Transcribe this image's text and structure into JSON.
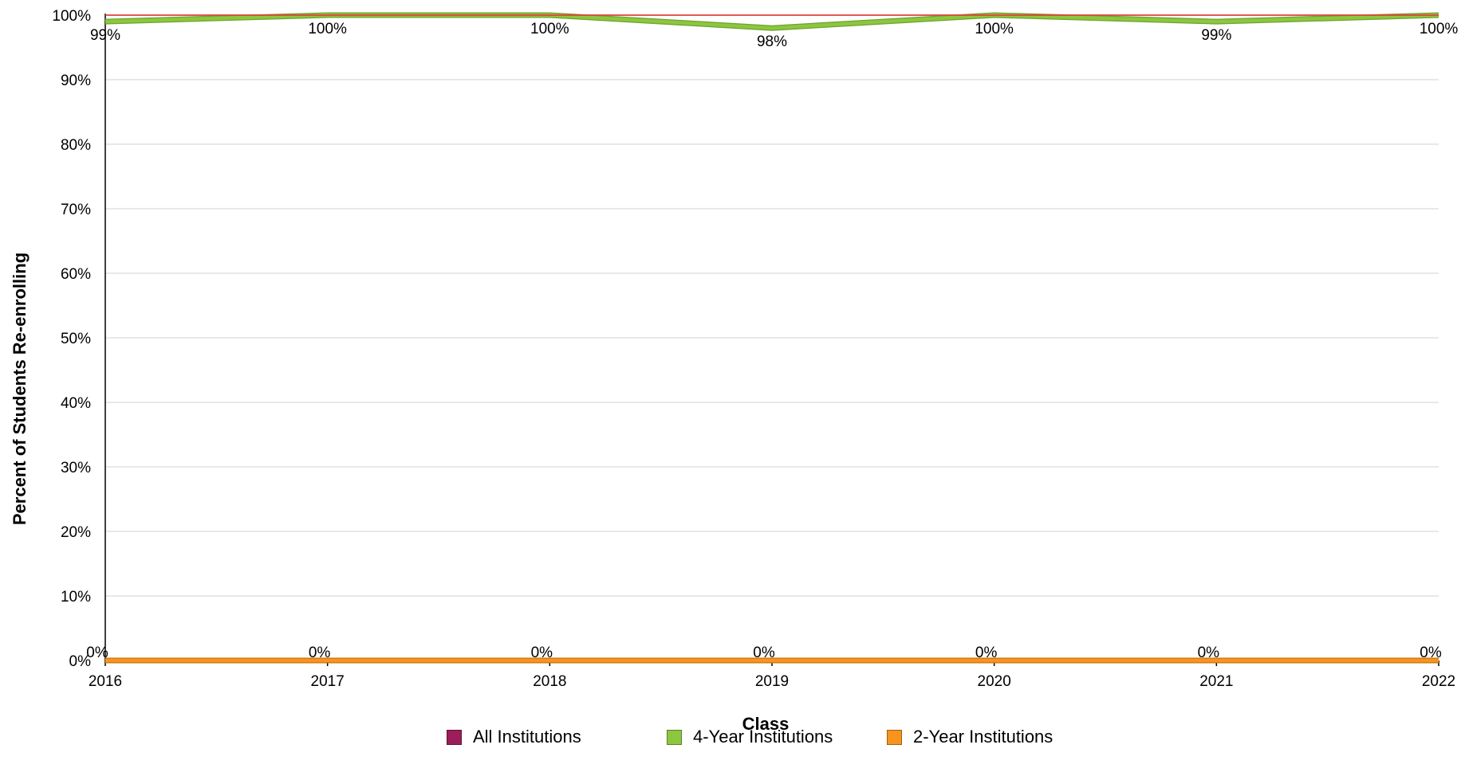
{
  "chart_data": {
    "type": "line",
    "title": "",
    "xlabel": "Class",
    "ylabel": "Percent of Students Re-enrolling",
    "categories": [
      "2016",
      "2017",
      "2018",
      "2019",
      "2020",
      "2021",
      "2022"
    ],
    "ylim": [
      0,
      100
    ],
    "yticks": [
      "0%",
      "10%",
      "20%",
      "30%",
      "40%",
      "50%",
      "60%",
      "70%",
      "80%",
      "90%",
      "100%"
    ],
    "grid": true,
    "legend_position": "bottom",
    "series": [
      {
        "name": "All Institutions",
        "color": "#9b1d5a",
        "line_color": "#e0423a",
        "values": [
          100,
          100,
          100,
          100,
          100,
          100,
          100
        ],
        "labels": []
      },
      {
        "name": "4-Year Institutions",
        "color": "#8dc63f",
        "values": [
          99,
          100,
          100,
          98,
          100,
          99,
          100
        ],
        "labels": [
          "99%",
          "100%",
          "100%",
          "98%",
          "100%",
          "99%",
          "100%"
        ]
      },
      {
        "name": "2-Year Institutions",
        "color": "#f7941d",
        "values": [
          0,
          0,
          0,
          0,
          0,
          0,
          0
        ],
        "labels": [
          "0%",
          "0%",
          "0%",
          "0%",
          "0%",
          "0%",
          "0%"
        ]
      }
    ]
  }
}
